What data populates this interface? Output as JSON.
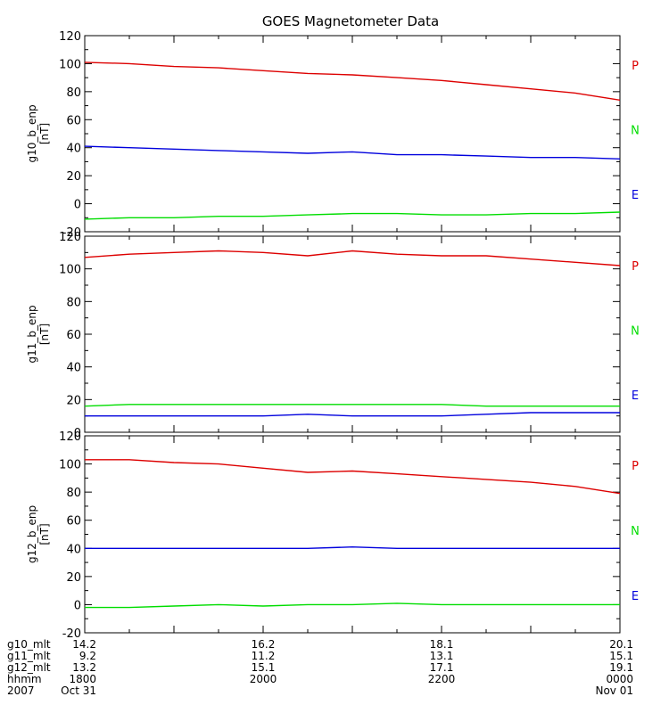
{
  "chart_data": {
    "type": "line",
    "title": "GOES Magnetometer Data",
    "colors": {
      "P": "#dd0000",
      "N": "#00dd00",
      "E": "#0000dd",
      "axis": "#000000"
    },
    "x": [
      0,
      0.5,
      1,
      1.5,
      2,
      2.5,
      3,
      3.5,
      4,
      4.5,
      5,
      5.5,
      6
    ],
    "xrange": [
      0,
      6
    ],
    "xlabel_rows": [
      {
        "name": "g10_mlt",
        "values": [
          "14.2",
          "16.2",
          "18.1",
          "20.1"
        ]
      },
      {
        "name": "g11_mlt",
        "values": [
          "9.2",
          "11.2",
          "13.1",
          "15.1"
        ]
      },
      {
        "name": "g12_mlt",
        "values": [
          "13.2",
          "15.1",
          "17.1",
          "19.1"
        ]
      },
      {
        "name": "hhmm",
        "values": [
          "1800",
          "2000",
          "2200",
          "0000"
        ]
      },
      {
        "name": "2007",
        "values": [
          "Oct 31",
          "",
          "",
          "Nov 01"
        ]
      }
    ],
    "panels": [
      {
        "ylabel": "g10_b_enp",
        "yunit": "[nT]",
        "ylim": [
          -20,
          120
        ],
        "yticks": [
          "120",
          "100",
          "80",
          "60",
          "40",
          "20",
          "0",
          "-20"
        ],
        "series": [
          {
            "name": "P",
            "color": "#dd0000",
            "values": [
              101,
              100,
              98,
              97,
              95,
              93,
              92,
              90,
              88,
              85,
              82,
              79,
              74
            ]
          },
          {
            "name": "N",
            "color": "#00dd00",
            "values": [
              -11,
              -10,
              -10,
              -9,
              -9,
              -8,
              -7,
              -7,
              -8,
              -8,
              -7,
              -7,
              -6
            ]
          },
          {
            "name": "E",
            "color": "#0000dd",
            "values": [
              41,
              40,
              39,
              38,
              37,
              36,
              37,
              35,
              35,
              34,
              33,
              33,
              32
            ]
          }
        ]
      },
      {
        "ylabel": "g11_b_enp",
        "yunit": "[nT]",
        "ylim": [
          0,
          120
        ],
        "yticks": [
          "120",
          "100",
          "80",
          "60",
          "40",
          "20",
          "0"
        ],
        "series": [
          {
            "name": "P",
            "color": "#dd0000",
            "values": [
              107,
              109,
              110,
              111,
              110,
              108,
              111,
              109,
              108,
              108,
              106,
              104,
              102
            ]
          },
          {
            "name": "N",
            "color": "#00dd00",
            "values": [
              16,
              17,
              17,
              17,
              17,
              17,
              17,
              17,
              17,
              16,
              16,
              16,
              16
            ]
          },
          {
            "name": "E",
            "color": "#0000dd",
            "values": [
              10,
              10,
              10,
              10,
              10,
              11,
              10,
              10,
              10,
              11,
              12,
              12,
              12
            ]
          }
        ]
      },
      {
        "ylabel": "g12_b_enp",
        "yunit": "[nT]",
        "ylim": [
          -20,
          120
        ],
        "yticks": [
          "120",
          "100",
          "80",
          "60",
          "40",
          "20",
          "0",
          "-20"
        ],
        "series": [
          {
            "name": "P",
            "color": "#dd0000",
            "values": [
              103,
              103,
              101,
              100,
              97,
              94,
              95,
              93,
              91,
              89,
              87,
              84,
              79
            ]
          },
          {
            "name": "N",
            "color": "#00dd00",
            "values": [
              -2,
              -2,
              -1,
              0,
              -1,
              0,
              0,
              1,
              0,
              0,
              0,
              0,
              0
            ]
          },
          {
            "name": "E",
            "color": "#0000dd",
            "values": [
              40,
              40,
              40,
              40,
              40,
              40,
              41,
              40,
              40,
              40,
              40,
              40,
              40
            ]
          }
        ]
      }
    ]
  }
}
